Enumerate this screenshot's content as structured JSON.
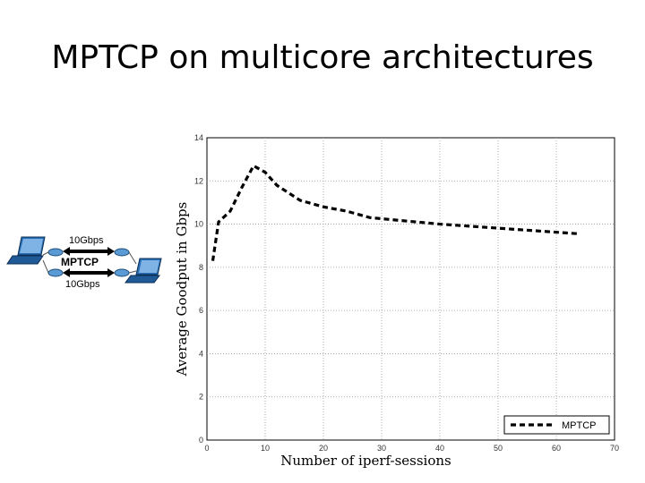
{
  "slide": {
    "title": "MPTCP on multicore architectures"
  },
  "diagram": {
    "link_top_label": "10Gbps",
    "link_bottom_label": "10Gbps",
    "protocol_label": "MPTCP",
    "icons": [
      "laptop-icon",
      "router-icon",
      "router-icon",
      "laptop-icon"
    ]
  },
  "chart_data": {
    "type": "line",
    "title": "",
    "xlabel": "Number of iperf-sessions",
    "ylabel": "Average Goodput in Gbps",
    "xlim": [
      0,
      70
    ],
    "ylim": [
      0,
      14
    ],
    "xticks": [
      0,
      10,
      20,
      30,
      40,
      50,
      60,
      70
    ],
    "yticks": [
      0,
      2,
      4,
      6,
      8,
      10,
      12,
      14
    ],
    "grid": true,
    "legend_position": "bottom-right",
    "series": [
      {
        "name": "MPTCP",
        "color": "#000000",
        "style": "dashed",
        "x": [
          1,
          2,
          4,
          6,
          8,
          10,
          12,
          16,
          20,
          24,
          28,
          32,
          40,
          48,
          56,
          64
        ],
        "y": [
          8.3,
          10.1,
          10.6,
          11.7,
          12.7,
          12.4,
          11.8,
          11.1,
          10.8,
          10.6,
          10.3,
          10.2,
          10.0,
          9.85,
          9.7,
          9.55
        ]
      }
    ]
  }
}
